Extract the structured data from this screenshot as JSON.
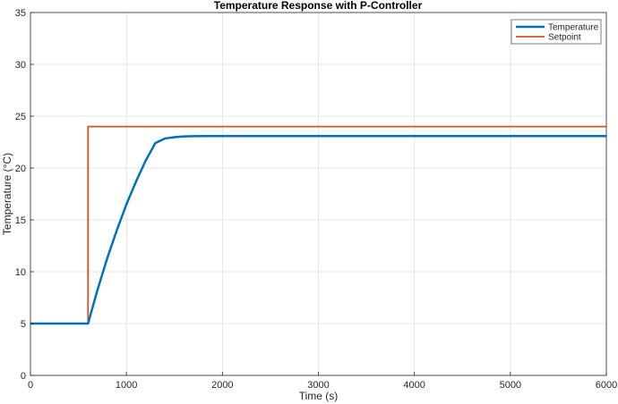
{
  "chart_data": {
    "type": "line",
    "title": "Temperature Response with P-Controller",
    "xlabel": "Time (s)",
    "ylabel": "Temperature (°C)",
    "xlim": [
      0,
      6000
    ],
    "ylim": [
      0,
      35
    ],
    "xticks": [
      0,
      1000,
      2000,
      3000,
      4000,
      5000,
      6000
    ],
    "yticks": [
      0,
      5,
      10,
      15,
      20,
      25,
      30,
      35
    ],
    "grid": true,
    "legend_position": "top-right",
    "series": [
      {
        "name": "Temperature",
        "color": "#0072BD",
        "x": [
          0,
          600,
          700,
          800,
          900,
          1000,
          1100,
          1200,
          1300,
          1400,
          1500,
          1550,
          1600,
          1700,
          1800,
          2000,
          3000,
          4000,
          5000,
          6000
        ],
        "y": [
          5,
          5,
          8.3,
          11.3,
          14.0,
          16.5,
          18.7,
          20.7,
          22.4,
          22.85,
          22.97,
          23.02,
          23.05,
          23.07,
          23.08,
          23.08,
          23.08,
          23.08,
          23.08,
          23.08
        ]
      },
      {
        "name": "Setpoint",
        "color": "#D95319",
        "x": [
          0,
          600,
          600,
          6000
        ],
        "y": [
          5,
          5,
          24,
          24
        ]
      }
    ]
  }
}
